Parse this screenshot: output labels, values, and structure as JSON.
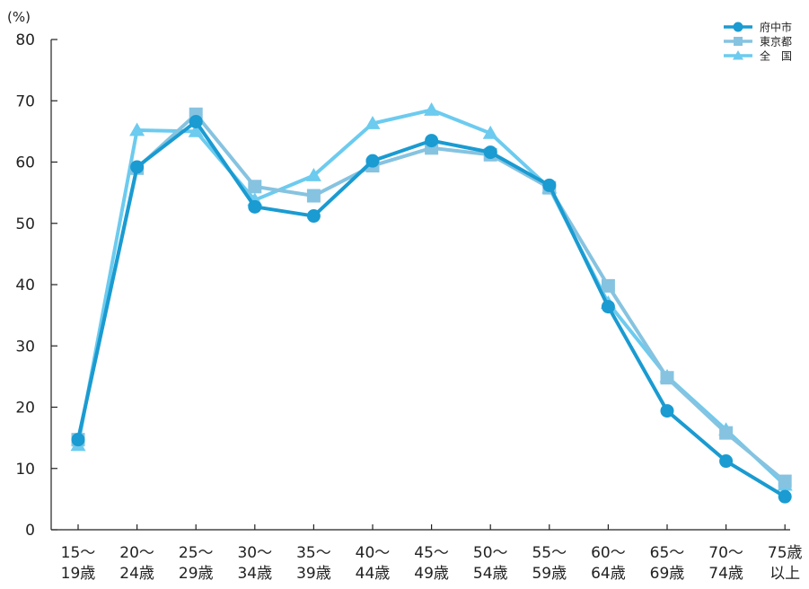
{
  "chart_data": {
    "type": "line",
    "unit_label": "(%)",
    "ylim": [
      0,
      80
    ],
    "yticks": [
      0,
      10,
      20,
      30,
      40,
      50,
      60,
      70,
      80
    ],
    "grid": false,
    "legend_position": "top-right",
    "categories": [
      [
        "15〜",
        "19歳"
      ],
      [
        "20〜",
        "24歳"
      ],
      [
        "25〜",
        "29歳"
      ],
      [
        "30〜",
        "34歳"
      ],
      [
        "35〜",
        "39歳"
      ],
      [
        "40〜",
        "44歳"
      ],
      [
        "45〜",
        "49歳"
      ],
      [
        "50〜",
        "54歳"
      ],
      [
        "55〜",
        "59歳"
      ],
      [
        "60〜",
        "64歳"
      ],
      [
        "65〜",
        "69歳"
      ],
      [
        "70〜",
        "74歳"
      ],
      [
        "75歳",
        "以上"
      ]
    ],
    "series": [
      {
        "name": "全　国",
        "color": "#6ccbef",
        "marker": "triangle",
        "values": [
          13.8,
          65.2,
          65.0,
          53.8,
          57.8,
          66.3,
          68.5,
          64.7,
          55.8,
          37.0,
          25.0,
          16.3,
          7.3
        ]
      },
      {
        "name": "東京都",
        "color": "#86c3e0",
        "marker": "square",
        "values": [
          14.7,
          59.0,
          67.8,
          56.0,
          54.5,
          59.4,
          62.3,
          61.2,
          55.8,
          39.8,
          24.8,
          15.8,
          7.9
        ]
      },
      {
        "name": "府中市",
        "color": "#1a9bd1",
        "marker": "circle",
        "values": [
          14.7,
          59.2,
          66.6,
          52.7,
          51.2,
          60.2,
          63.5,
          61.6,
          56.2,
          36.4,
          19.4,
          11.2,
          5.4
        ]
      }
    ],
    "legend_order": [
      "府中市",
      "東京都",
      "全　国"
    ]
  }
}
